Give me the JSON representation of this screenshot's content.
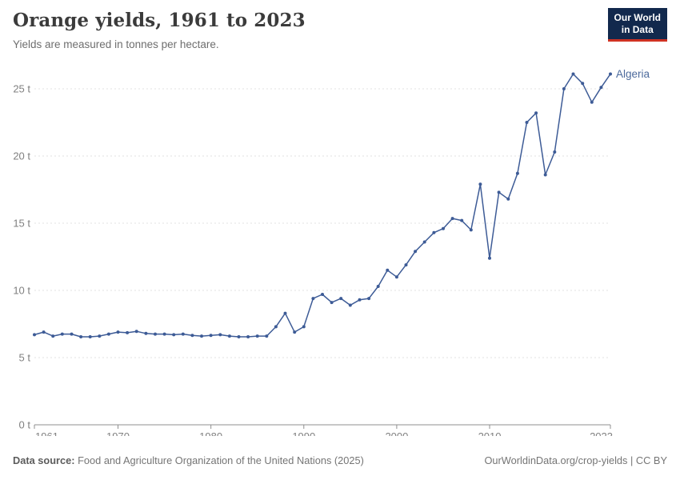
{
  "header": {
    "title": "Orange yields, 1961 to 2023",
    "subtitle": "Yields are measured in tonnes per hectare.",
    "logo": {
      "line1": "Our World",
      "line2": "in Data"
    }
  },
  "chart_data": {
    "type": "line",
    "title": "Orange yields, 1961 to 2023",
    "ylabel": "tonnes per hectare",
    "xlabel": "",
    "grid": "horizontal-dashed",
    "legend_position": "end-of-line-label",
    "xlim": [
      1961,
      2023
    ],
    "ylim": [
      0,
      26.5
    ],
    "xticks": [
      1961,
      1970,
      1980,
      1990,
      2000,
      2010,
      2023
    ],
    "yticks": [
      0,
      5,
      10,
      15,
      20,
      25
    ],
    "ytick_suffix": " t",
    "series": [
      {
        "name": "Algeria",
        "color": "#3d5b96",
        "label_color": "#4c6a9c",
        "x": [
          1961,
          1962,
          1963,
          1964,
          1965,
          1966,
          1967,
          1968,
          1969,
          1970,
          1971,
          1972,
          1973,
          1974,
          1975,
          1976,
          1977,
          1978,
          1979,
          1980,
          1981,
          1982,
          1983,
          1984,
          1985,
          1986,
          1987,
          1988,
          1989,
          1990,
          1991,
          1992,
          1993,
          1994,
          1995,
          1996,
          1997,
          1998,
          1999,
          2000,
          2001,
          2002,
          2003,
          2004,
          2005,
          2006,
          2007,
          2008,
          2009,
          2010,
          2011,
          2012,
          2013,
          2014,
          2015,
          2016,
          2017,
          2018,
          2019,
          2020,
          2021,
          2022,
          2023
        ],
        "values": [
          6.7,
          6.9,
          6.6,
          6.75,
          6.75,
          6.55,
          6.55,
          6.6,
          6.75,
          6.9,
          6.85,
          6.95,
          6.8,
          6.75,
          6.75,
          6.7,
          6.75,
          6.65,
          6.6,
          6.65,
          6.7,
          6.6,
          6.55,
          6.55,
          6.6,
          6.6,
          7.3,
          8.3,
          6.9,
          7.3,
          9.4,
          9.7,
          9.1,
          9.4,
          8.9,
          9.3,
          9.4,
          10.3,
          11.5,
          11.0,
          11.9,
          12.9,
          13.6,
          14.3,
          14.6,
          15.35,
          15.2,
          14.5,
          17.9,
          12.4,
          17.3,
          16.8,
          18.7,
          22.5,
          23.2,
          18.6,
          20.3,
          25.0,
          26.1,
          25.4,
          24.0,
          25.1,
          26.1
        ]
      }
    ],
    "colors": {
      "grid": "#e0e0e0",
      "axis": "#8f8f8f",
      "tick_label": "#808080"
    }
  },
  "footer": {
    "source_label": "Data source:",
    "source_text": "Food and Agriculture Organization of the United Nations (2025)",
    "credit": "OurWorldinData.org/crop-yields | CC BY"
  }
}
